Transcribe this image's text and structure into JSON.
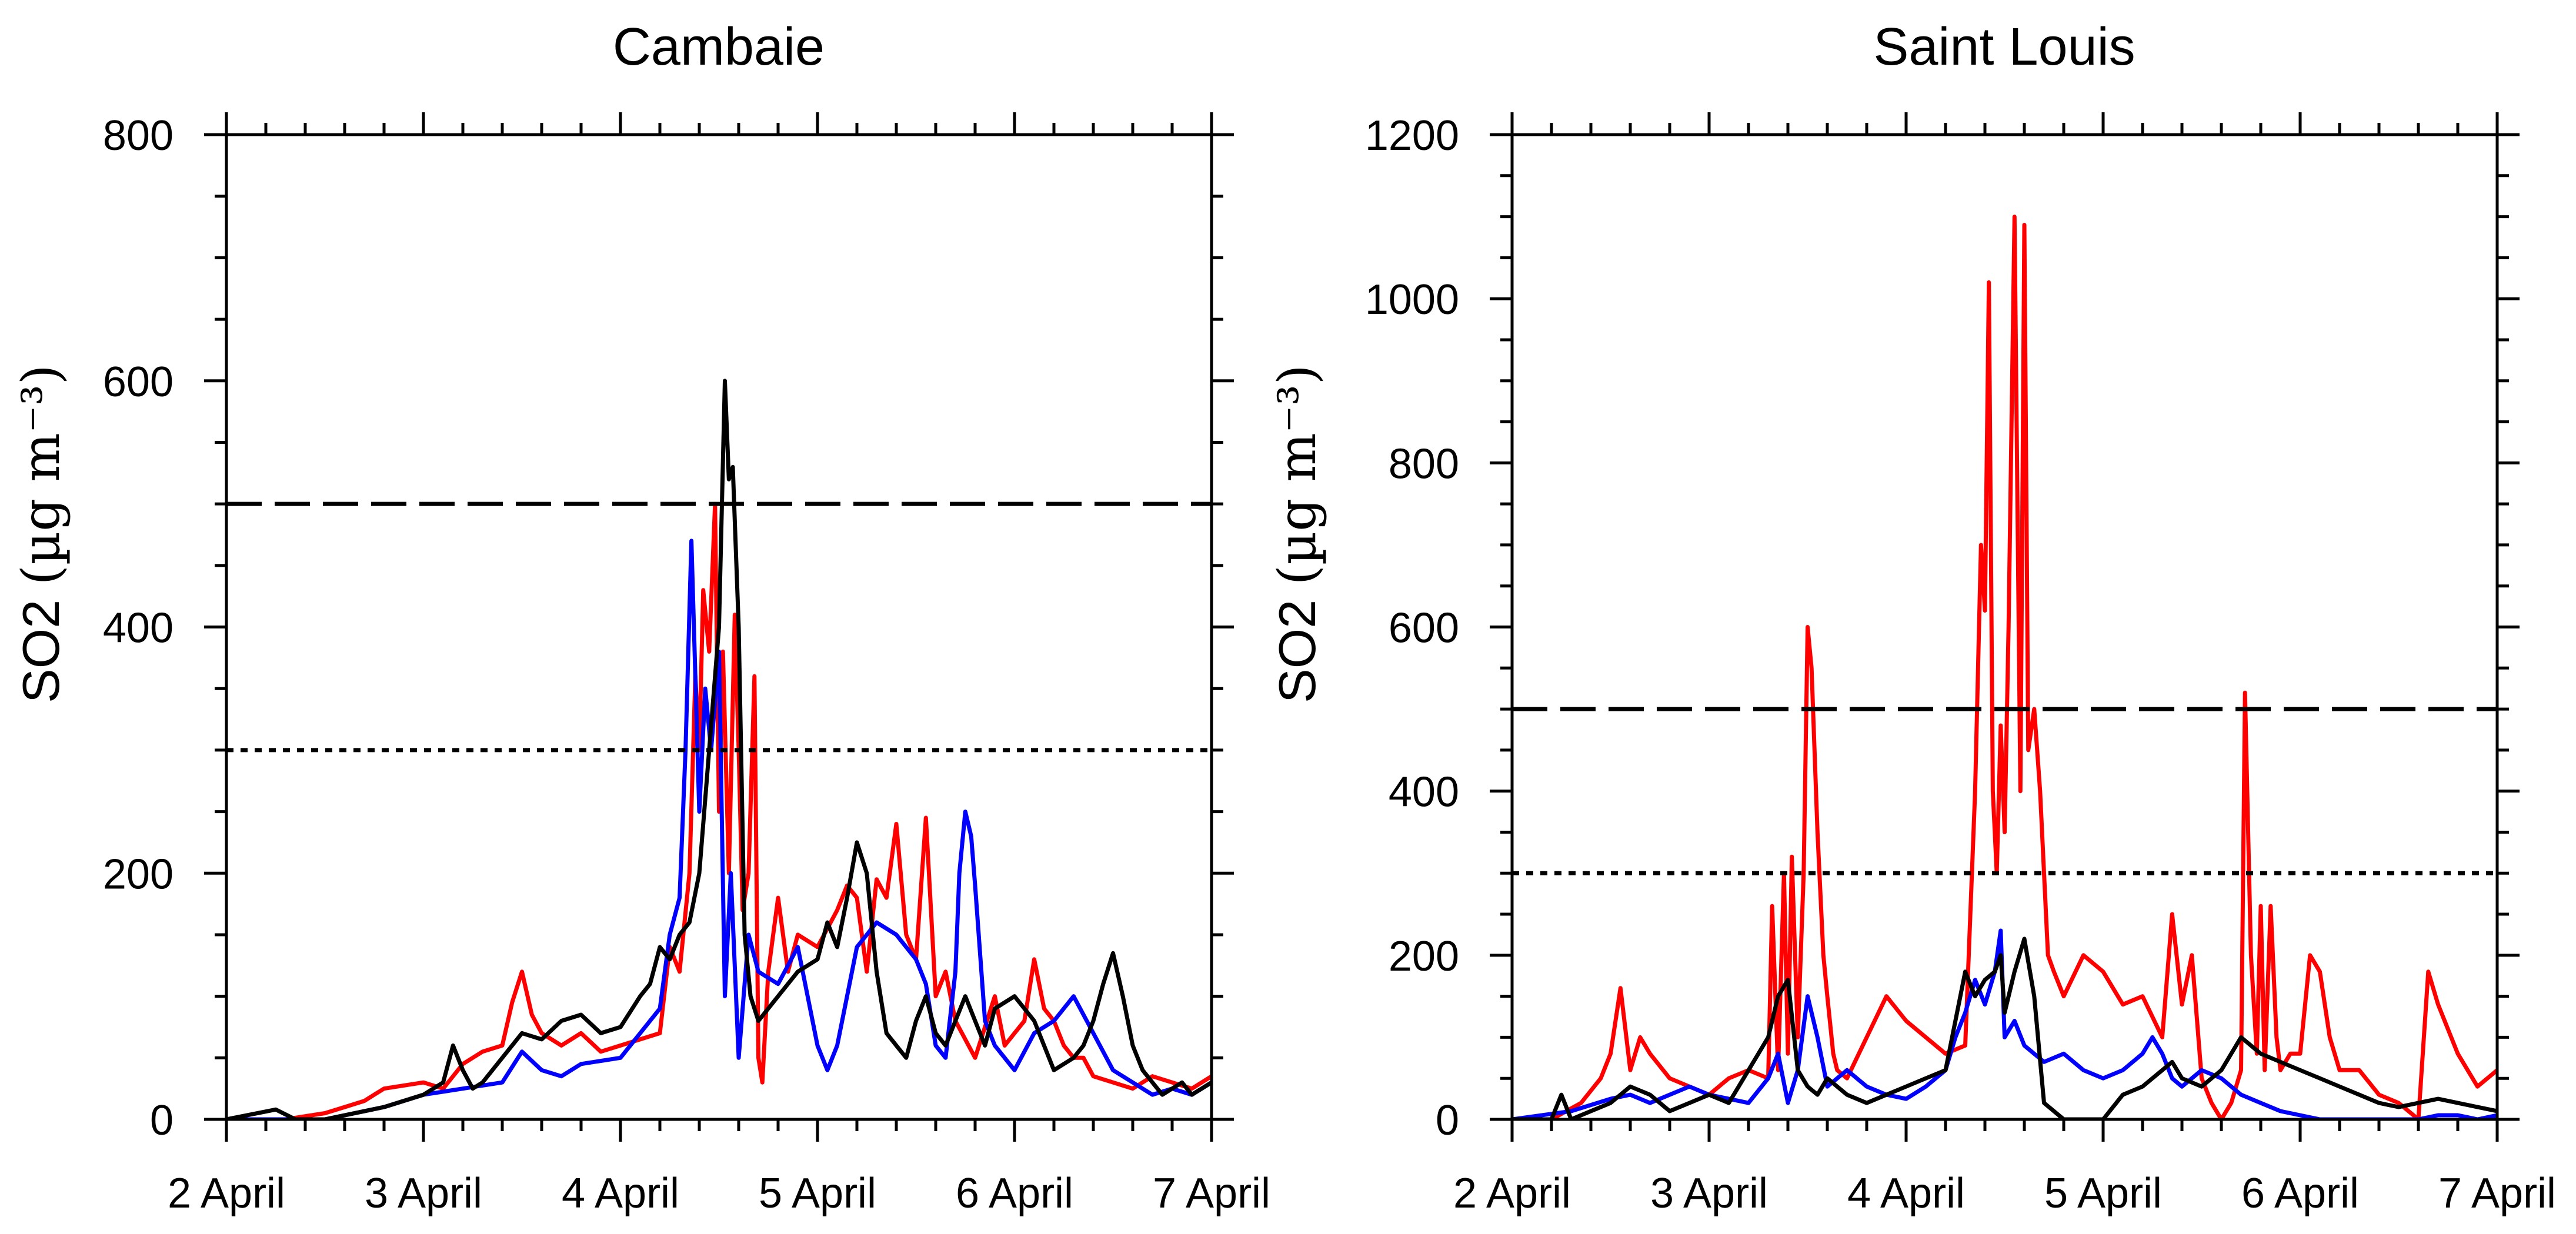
{
  "colors": {
    "red": "#ff0000",
    "blue": "#0000ff",
    "black": "#000000"
  },
  "xticks": [
    "2 April",
    "3 April",
    "4 April",
    "5 April",
    "6 April",
    "7 April"
  ],
  "chart_data": [
    {
      "type": "line",
      "title": "Cambaie",
      "ylabel_main": "SO2",
      "ylabel_units": "(µg m⁻³)",
      "xlim": [
        0,
        5
      ],
      "ylim": [
        0,
        800
      ],
      "yticks": [
        0,
        200,
        400,
        600,
        800
      ],
      "ytick_labels": [
        "0",
        "200",
        "400",
        "600",
        "800"
      ],
      "hlines": [
        {
          "value": 500,
          "style": "dashed"
        },
        {
          "value": 300,
          "style": "dotted"
        }
      ],
      "series": [
        {
          "name": "red",
          "color": "red",
          "x": [
            0,
            0.3,
            0.5,
            0.6,
            0.7,
            0.8,
            1.0,
            1.1,
            1.2,
            1.3,
            1.4,
            1.45,
            1.5,
            1.55,
            1.6,
            1.7,
            1.8,
            1.9,
            2.0,
            2.1,
            2.2,
            2.25,
            2.3,
            2.35,
            2.38,
            2.4,
            2.42,
            2.45,
            2.48,
            2.5,
            2.52,
            2.55,
            2.58,
            2.6,
            2.62,
            2.65,
            2.68,
            2.7,
            2.72,
            2.75,
            2.8,
            2.85,
            2.9,
            3.0,
            3.1,
            3.15,
            3.2,
            3.25,
            3.3,
            3.35,
            3.4,
            3.45,
            3.5,
            3.55,
            3.6,
            3.65,
            3.7,
            3.8,
            3.9,
            3.95,
            4.0,
            4.05,
            4.1,
            4.15,
            4.2,
            4.25,
            4.3,
            4.35,
            4.4,
            4.5,
            4.6,
            4.7,
            4.8,
            4.9,
            5.0
          ],
          "y": [
            0,
            0,
            5,
            10,
            15,
            25,
            30,
            25,
            45,
            55,
            60,
            95,
            120,
            85,
            70,
            60,
            70,
            55,
            60,
            65,
            70,
            140,
            120,
            200,
            360,
            300,
            430,
            380,
            500,
            250,
            380,
            200,
            410,
            300,
            170,
            200,
            360,
            50,
            30,
            120,
            180,
            120,
            150,
            140,
            170,
            190,
            180,
            120,
            195,
            180,
            240,
            150,
            130,
            245,
            100,
            120,
            80,
            50,
            100,
            60,
            70,
            80,
            130,
            90,
            80,
            60,
            50,
            50,
            35,
            30,
            25,
            35,
            30,
            25,
            35
          ]
        },
        {
          "name": "blue",
          "color": "blue",
          "x": [
            0,
            0.5,
            0.8,
            1.0,
            1.2,
            1.4,
            1.5,
            1.6,
            1.7,
            1.8,
            2.0,
            2.1,
            2.2,
            2.25,
            2.3,
            2.33,
            2.36,
            2.4,
            2.43,
            2.46,
            2.5,
            2.53,
            2.56,
            2.6,
            2.65,
            2.7,
            2.8,
            2.9,
            3.0,
            3.05,
            3.1,
            3.15,
            3.2,
            3.3,
            3.4,
            3.5,
            3.55,
            3.6,
            3.65,
            3.7,
            3.72,
            3.75,
            3.78,
            3.8,
            3.85,
            3.9,
            4.0,
            4.1,
            4.2,
            4.3,
            4.4,
            4.5,
            4.6,
            4.7,
            4.8,
            4.9,
            5.0
          ],
          "y": [
            0,
            0,
            10,
            20,
            25,
            30,
            55,
            40,
            35,
            45,
            50,
            70,
            90,
            150,
            180,
            300,
            470,
            250,
            350,
            300,
            380,
            100,
            200,
            50,
            150,
            120,
            110,
            140,
            60,
            40,
            60,
            100,
            140,
            160,
            150,
            130,
            110,
            60,
            50,
            120,
            200,
            250,
            230,
            190,
            80,
            60,
            40,
            70,
            80,
            100,
            70,
            40,
            30,
            20,
            25,
            20,
            30
          ]
        },
        {
          "name": "black",
          "color": "black",
          "x": [
            0,
            0.25,
            0.35,
            0.5,
            0.8,
            0.9,
            1.0,
            1.1,
            1.15,
            1.2,
            1.25,
            1.3,
            1.4,
            1.5,
            1.6,
            1.7,
            1.8,
            1.9,
            2.0,
            2.1,
            2.15,
            2.2,
            2.25,
            2.3,
            2.35,
            2.4,
            2.45,
            2.5,
            2.53,
            2.55,
            2.57,
            2.6,
            2.63,
            2.66,
            2.7,
            2.8,
            2.9,
            3.0,
            3.05,
            3.1,
            3.15,
            3.2,
            3.25,
            3.3,
            3.35,
            3.4,
            3.45,
            3.5,
            3.55,
            3.6,
            3.65,
            3.7,
            3.75,
            3.8,
            3.85,
            3.9,
            4.0,
            4.1,
            4.2,
            4.3,
            4.35,
            4.4,
            4.45,
            4.5,
            4.55,
            4.6,
            4.65,
            4.7,
            4.75,
            4.8,
            4.85,
            4.9,
            5.0
          ],
          "y": [
            0,
            8,
            0,
            0,
            10,
            15,
            20,
            30,
            60,
            40,
            25,
            30,
            50,
            70,
            65,
            80,
            85,
            70,
            75,
            100,
            110,
            140,
            130,
            150,
            160,
            200,
            300,
            400,
            600,
            520,
            530,
            400,
            150,
            100,
            80,
            100,
            120,
            130,
            160,
            140,
            180,
            225,
            200,
            120,
            70,
            60,
            50,
            80,
            100,
            70,
            60,
            80,
            100,
            80,
            60,
            90,
            100,
            80,
            40,
            50,
            60,
            80,
            110,
            135,
            100,
            60,
            40,
            30,
            20,
            25,
            30,
            20,
            30
          ]
        }
      ]
    },
    {
      "type": "line",
      "title": "Saint Louis",
      "ylabel_main": "SO2",
      "ylabel_units": "(µg m⁻³)",
      "xlim": [
        0,
        5
      ],
      "ylim": [
        0,
        1200
      ],
      "yticks": [
        0,
        200,
        400,
        600,
        800,
        1000,
        1200
      ],
      "ytick_labels": [
        "0",
        "200",
        "400",
        "600",
        "800",
        "1000",
        "1200"
      ],
      "hlines": [
        {
          "value": 500,
          "style": "dashed"
        },
        {
          "value": 300,
          "style": "dotted"
        }
      ],
      "series": [
        {
          "name": "red",
          "color": "red",
          "x": [
            0,
            0.2,
            0.35,
            0.45,
            0.5,
            0.55,
            0.6,
            0.65,
            0.7,
            0.8,
            0.9,
            1.0,
            1.1,
            1.2,
            1.3,
            1.32,
            1.35,
            1.38,
            1.4,
            1.42,
            1.45,
            1.48,
            1.5,
            1.52,
            1.55,
            1.58,
            1.6,
            1.63,
            1.65,
            1.7,
            1.8,
            1.9,
            2.0,
            2.1,
            2.2,
            2.3,
            2.35,
            2.38,
            2.4,
            2.42,
            2.44,
            2.46,
            2.48,
            2.5,
            2.52,
            2.55,
            2.58,
            2.6,
            2.62,
            2.65,
            2.68,
            2.7,
            2.72,
            2.75,
            2.8,
            2.9,
            3.0,
            3.1,
            3.2,
            3.3,
            3.35,
            3.4,
            3.45,
            3.5,
            3.55,
            3.6,
            3.65,
            3.7,
            3.72,
            3.75,
            3.78,
            3.8,
            3.82,
            3.85,
            3.88,
            3.9,
            3.95,
            4.0,
            4.05,
            4.1,
            4.15,
            4.2,
            4.3,
            4.4,
            4.5,
            4.6,
            4.65,
            4.7,
            4.8,
            4.9,
            5.0
          ],
          "y": [
            0,
            0,
            20,
            50,
            80,
            160,
            60,
            100,
            80,
            50,
            40,
            30,
            50,
            60,
            50,
            260,
            60,
            300,
            80,
            320,
            100,
            300,
            600,
            550,
            350,
            200,
            150,
            80,
            60,
            50,
            100,
            150,
            120,
            100,
            80,
            90,
            400,
            700,
            620,
            1020,
            400,
            300,
            480,
            350,
            600,
            1100,
            400,
            1090,
            450,
            500,
            400,
            300,
            200,
            180,
            150,
            200,
            180,
            140,
            150,
            100,
            250,
            140,
            200,
            50,
            20,
            0,
            20,
            60,
            520,
            200,
            80,
            260,
            60,
            260,
            100,
            60,
            80,
            80,
            200,
            180,
            100,
            60,
            60,
            30,
            20,
            0,
            180,
            140,
            80,
            40,
            60
          ]
        },
        {
          "name": "blue",
          "color": "blue",
          "x": [
            0,
            0.3,
            0.5,
            0.6,
            0.7,
            0.8,
            0.9,
            1.0,
            1.1,
            1.2,
            1.3,
            1.35,
            1.4,
            1.45,
            1.5,
            1.55,
            1.6,
            1.7,
            1.8,
            1.9,
            2.0,
            2.1,
            2.2,
            2.25,
            2.3,
            2.35,
            2.4,
            2.45,
            2.48,
            2.5,
            2.55,
            2.6,
            2.7,
            2.8,
            2.9,
            3.0,
            3.1,
            3.2,
            3.25,
            3.3,
            3.35,
            3.4,
            3.5,
            3.6,
            3.7,
            3.8,
            3.9,
            4.0,
            4.1,
            4.2,
            4.3,
            4.4,
            4.5,
            4.6,
            4.7,
            4.8,
            4.9,
            5.0
          ],
          "y": [
            0,
            10,
            25,
            30,
            20,
            30,
            40,
            30,
            25,
            20,
            50,
            80,
            20,
            60,
            150,
            100,
            40,
            60,
            40,
            30,
            25,
            40,
            60,
            100,
            130,
            170,
            140,
            180,
            230,
            100,
            120,
            90,
            70,
            80,
            60,
            50,
            60,
            80,
            100,
            80,
            50,
            40,
            60,
            50,
            30,
            20,
            10,
            5,
            0,
            0,
            0,
            0,
            0,
            0,
            5,
            5,
            0,
            5
          ]
        },
        {
          "name": "black",
          "color": "black",
          "x": [
            0,
            0.2,
            0.25,
            0.3,
            0.4,
            0.5,
            0.6,
            0.7,
            0.8,
            0.9,
            1.0,
            1.1,
            1.15,
            1.2,
            1.25,
            1.3,
            1.35,
            1.4,
            1.45,
            1.5,
            1.55,
            1.6,
            1.65,
            1.7,
            1.8,
            1.9,
            2.0,
            2.1,
            2.2,
            2.25,
            2.3,
            2.35,
            2.4,
            2.45,
            2.48,
            2.5,
            2.55,
            2.6,
            2.65,
            2.7,
            2.8,
            2.9,
            3.0,
            3.1,
            3.2,
            3.25,
            3.3,
            3.35,
            3.4,
            3.5,
            3.6,
            3.7,
            3.8,
            3.9,
            4.0,
            4.1,
            4.2,
            4.3,
            4.4,
            4.5,
            4.6,
            4.7,
            4.8,
            4.9,
            5.0
          ],
          "y": [
            0,
            0,
            30,
            0,
            10,
            20,
            40,
            30,
            10,
            20,
            30,
            20,
            40,
            60,
            80,
            100,
            150,
            170,
            60,
            40,
            30,
            50,
            40,
            30,
            20,
            30,
            40,
            50,
            60,
            120,
            180,
            150,
            170,
            180,
            200,
            130,
            180,
            220,
            150,
            20,
            0,
            0,
            0,
            30,
            40,
            50,
            60,
            70,
            50,
            40,
            60,
            100,
            80,
            70,
            60,
            50,
            40,
            30,
            20,
            15,
            20,
            25,
            20,
            15,
            10
          ]
        }
      ]
    }
  ]
}
